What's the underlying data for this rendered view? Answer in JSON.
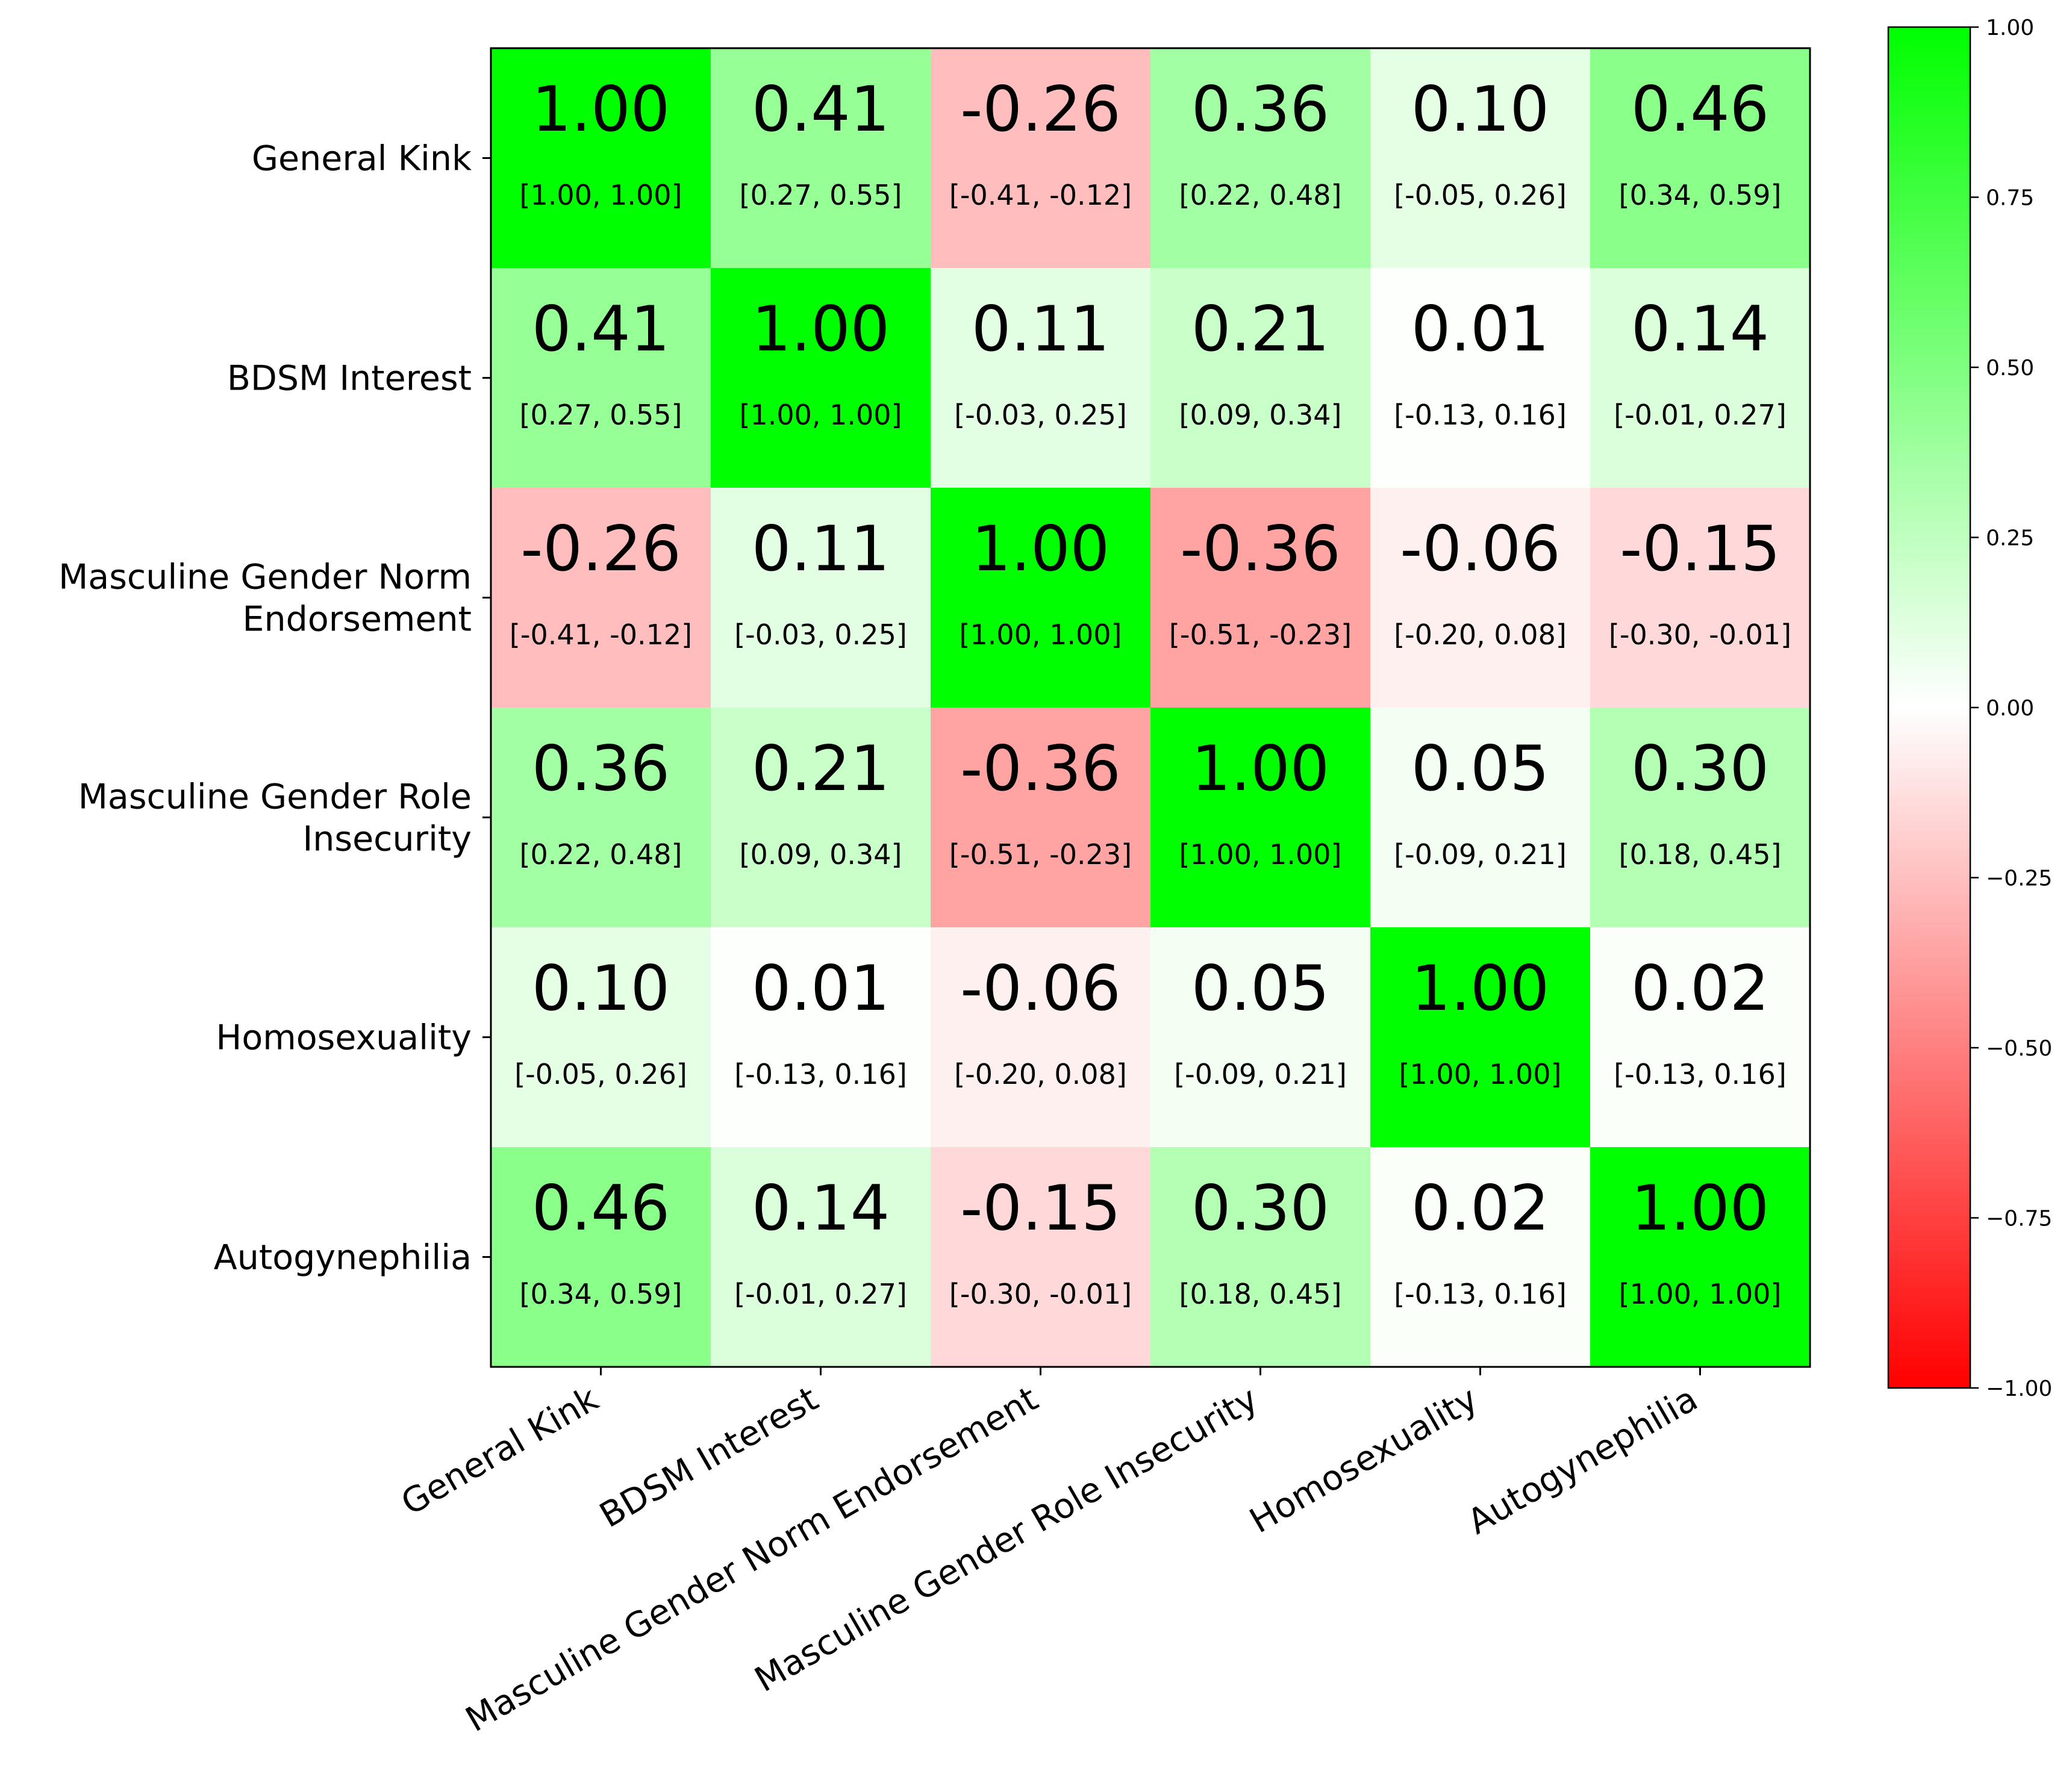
{
  "chart_data": {
    "type": "heatmap",
    "title": "",
    "xlabel": "",
    "ylabel": "",
    "variables": [
      "General Kink",
      "BDSM Interest",
      "Masculine Gender Norm Endorsement",
      "Masculine Gender Role Insecurity",
      "Homosexuality",
      "Autogynephilia"
    ],
    "y_tick_labels": [
      [
        "General Kink"
      ],
      [
        "BDSM Interest"
      ],
      [
        "Masculine Gender Norm",
        "Endorsement"
      ],
      [
        "Masculine Gender Role",
        "Insecurity"
      ],
      [
        "Homosexuality"
      ],
      [
        "Autogynephilia"
      ]
    ],
    "values": [
      [
        1.0,
        0.41,
        -0.26,
        0.36,
        0.1,
        0.46
      ],
      [
        0.41,
        1.0,
        0.11,
        0.21,
        0.01,
        0.14
      ],
      [
        -0.26,
        0.11,
        1.0,
        -0.36,
        -0.06,
        -0.15
      ],
      [
        0.36,
        0.21,
        -0.36,
        1.0,
        0.05,
        0.3
      ],
      [
        0.1,
        0.01,
        -0.06,
        0.05,
        1.0,
        0.02
      ],
      [
        0.46,
        0.14,
        -0.15,
        0.3,
        0.02,
        1.0
      ]
    ],
    "ci_labels": [
      [
        "[1.00, 1.00]",
        "[0.27, 0.55]",
        "[-0.41, -0.12]",
        "[0.22, 0.48]",
        "[-0.05, 0.26]",
        "[0.34, 0.59]"
      ],
      [
        "[0.27, 0.55]",
        "[1.00, 1.00]",
        "[-0.03, 0.25]",
        "[0.09, 0.34]",
        "[-0.13, 0.16]",
        "[-0.01, 0.27]"
      ],
      [
        "[-0.41, -0.12]",
        "[-0.03, 0.25]",
        "[1.00, 1.00]",
        "[-0.51, -0.23]",
        "[-0.20, 0.08]",
        "[-0.30, -0.01]"
      ],
      [
        "[0.22, 0.48]",
        "[0.09, 0.34]",
        "[-0.51, -0.23]",
        "[1.00, 1.00]",
        "[-0.09, 0.21]",
        "[0.18, 0.45]"
      ],
      [
        "[-0.05, 0.26]",
        "[-0.13, 0.16]",
        "[-0.20, 0.08]",
        "[-0.09, 0.21]",
        "[1.00, 1.00]",
        "[-0.13, 0.16]"
      ],
      [
        "[0.34, 0.59]",
        "[-0.01, 0.27]",
        "[-0.30, -0.01]",
        "[0.18, 0.45]",
        "[-0.13, 0.16]",
        "[1.00, 1.00]"
      ]
    ],
    "value_format_decimals": 2,
    "colorbar": {
      "vmin": -1.0,
      "vmax": 1.0,
      "ticks": [
        1.0,
        0.75,
        0.5,
        0.25,
        0.0,
        -0.25,
        -0.5,
        -0.75,
        -1.0
      ],
      "tick_labels": [
        "1.00",
        "0.75",
        "0.50",
        "0.25",
        "0.00",
        "−0.25",
        "−0.50",
        "−0.75",
        "−1.00"
      ],
      "low_color": "#ff0000",
      "mid_color": "#ffffff",
      "high_color": "#00ff00"
    },
    "xtick_rotation_deg": 30,
    "grid": false,
    "legend": "colorbar-right"
  }
}
